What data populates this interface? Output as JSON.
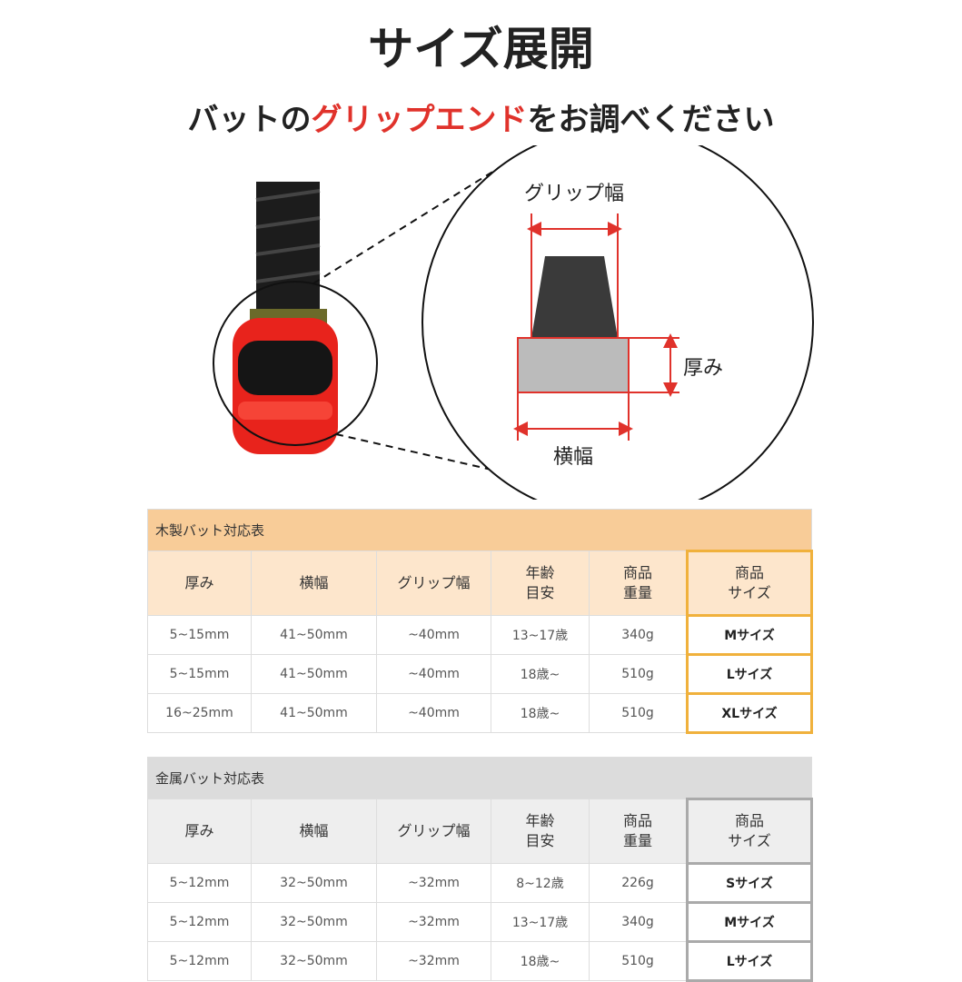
{
  "title": "サイズ展開",
  "subtitle": {
    "pre": "バットの",
    "highlight": "グリップエンド",
    "post": "をお調べください"
  },
  "diagram": {
    "grip_width": "グリップ幅",
    "thickness": "厚み",
    "width": "横幅"
  },
  "colors": {
    "highlight": "#e0322b",
    "wood_accent": "#f0b13c",
    "wood_header": "#f8cc98",
    "metal_header": "#dcdcdc"
  },
  "wood": {
    "caption": "木製バット対応表",
    "headers": [
      [
        "厚み"
      ],
      [
        "横幅"
      ],
      [
        "グリップ幅"
      ],
      [
        "年齢",
        "目安"
      ],
      [
        "商品",
        "重量"
      ],
      [
        "商品",
        "サイズ"
      ]
    ],
    "rows": [
      [
        "5~15mm",
        "41~50mm",
        "~40mm",
        "13~17歳",
        "340g",
        "Mサイズ"
      ],
      [
        "5~15mm",
        "41~50mm",
        "~40mm",
        "18歳~",
        "510g",
        "Lサイズ"
      ],
      [
        "16~25mm",
        "41~50mm",
        "~40mm",
        "18歳~",
        "510g",
        "XLサイズ"
      ]
    ]
  },
  "metal": {
    "caption": "金属バット対応表",
    "headers": [
      [
        "厚み"
      ],
      [
        "横幅"
      ],
      [
        "グリップ幅"
      ],
      [
        "年齢",
        "目安"
      ],
      [
        "商品",
        "重量"
      ],
      [
        "商品",
        "サイズ"
      ]
    ],
    "rows": [
      [
        "5~12mm",
        "32~50mm",
        "~32mm",
        "8~12歳",
        "226g",
        "Sサイズ"
      ],
      [
        "5~12mm",
        "32~50mm",
        "~32mm",
        "13~17歳",
        "340g",
        "Mサイズ"
      ],
      [
        "5~12mm",
        "32~50mm",
        "~32mm",
        "18歳~",
        "510g",
        "Lサイズ"
      ]
    ]
  }
}
